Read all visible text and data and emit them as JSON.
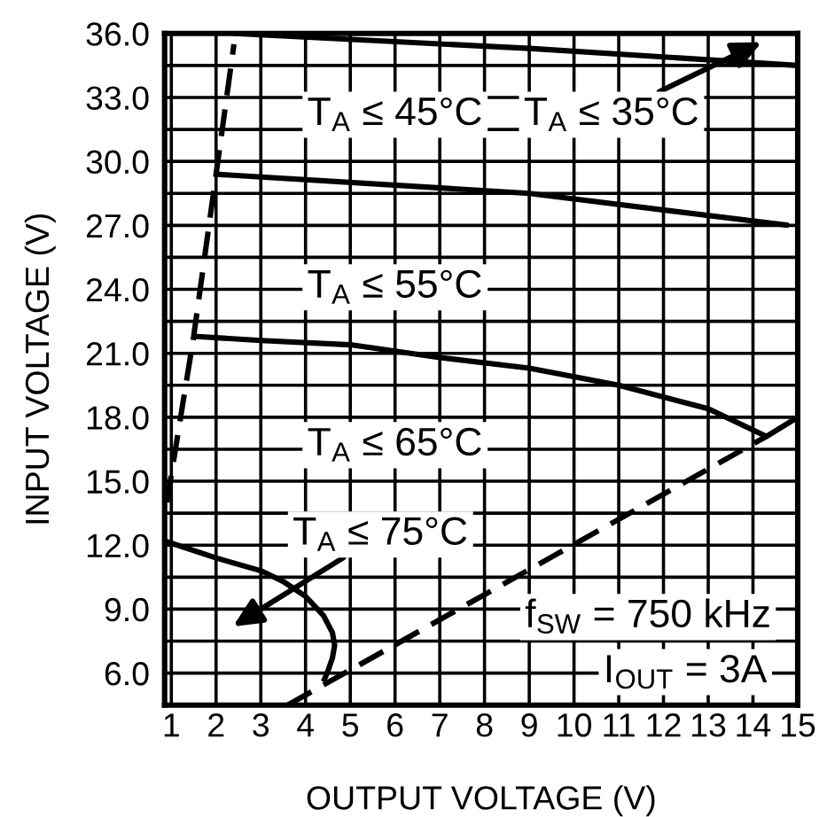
{
  "chart_data": {
    "type": "line",
    "xlabel": "OUTPUT VOLTAGE (V)",
    "ylabel": "INPUT VOLTAGE (V)",
    "xlim": [
      0.85,
      15
    ],
    "xticks": [
      1,
      2,
      3,
      4,
      5,
      6,
      7,
      8,
      9,
      10,
      11,
      12,
      13,
      14,
      15
    ],
    "ylim": [
      4.5,
      36
    ],
    "yticks": [
      {
        "value": 6,
        "label": "6.0"
      },
      {
        "value": 7.5,
        "label": null
      },
      {
        "value": 9,
        "label": "9.0"
      },
      {
        "value": 10.5,
        "label": null
      },
      {
        "value": 12,
        "label": "12.0"
      },
      {
        "value": 13.5,
        "label": null
      },
      {
        "value": 15,
        "label": "15.0"
      },
      {
        "value": 16.5,
        "label": null
      },
      {
        "value": 18,
        "label": "18.0"
      },
      {
        "value": 19.5,
        "label": null
      },
      {
        "value": 21,
        "label": "21.0"
      },
      {
        "value": 22.5,
        "label": null
      },
      {
        "value": 24,
        "label": "24.0"
      },
      {
        "value": 25.5,
        "label": null
      },
      {
        "value": 27,
        "label": "27.0"
      },
      {
        "value": 28.5,
        "label": null
      },
      {
        "value": 30,
        "label": "30.0"
      },
      {
        "value": 31.5,
        "label": null
      },
      {
        "value": 33,
        "label": "33.0"
      },
      {
        "value": 34.5,
        "label": null
      },
      {
        "value": 36,
        "label": "36.0"
      }
    ],
    "grid": true,
    "series": [
      {
        "color": "#000000",
        "line_style": "solid",
        "x": [
          2.4,
          9,
          15
        ],
        "values": [
          36.0,
          35.3,
          34.5
        ]
      },
      {
        "color": "#000000",
        "line_style": "solid",
        "x": [
          2.0,
          9,
          14.8
        ],
        "values": [
          29.4,
          28.5,
          27.0
        ]
      },
      {
        "color": "#000000",
        "line_style": "solid",
        "x": [
          1.5,
          3,
          5,
          7,
          9,
          11,
          13,
          14.3,
          15
        ],
        "values": [
          21.8,
          21.6,
          21.4,
          20.8,
          20.3,
          19.5,
          18.4,
          17.1,
          18.0
        ]
      },
      {
        "color": "#000000",
        "line_style": "solid",
        "x": [
          0.85,
          2,
          3,
          3.5,
          4,
          4.4,
          4.6,
          4.65,
          4.6,
          4.5,
          4.4
        ],
        "values": [
          12.2,
          11.4,
          10.8,
          10.3,
          9.6,
          8.7,
          7.9,
          7.3,
          6.7,
          6.1,
          5.6
        ]
      },
      {
        "color": "#000000",
        "line_style": "dashed",
        "x": [
          0.9,
          1.5,
          2.0,
          2.4
        ],
        "values": [
          14.0,
          21.8,
          29.4,
          35.5
        ]
      },
      {
        "color": "#000000",
        "line_style": "dashed",
        "x": [
          3.6,
          14.3
        ],
        "values": [
          4.5,
          17.1
        ]
      }
    ],
    "annotations": [
      "T$_{A}$ ≤ 45°C",
      "T$_{A}$ ≤ 35°C",
      "T$_{A}$ ≤ 55°C",
      "T$_{A}$ ≤ 65°C",
      "T$_{A}$ ≤ 75°C",
      "f$_{SW}$ = 750 kHz",
      "I$_{OUT}$ = 3A"
    ]
  }
}
